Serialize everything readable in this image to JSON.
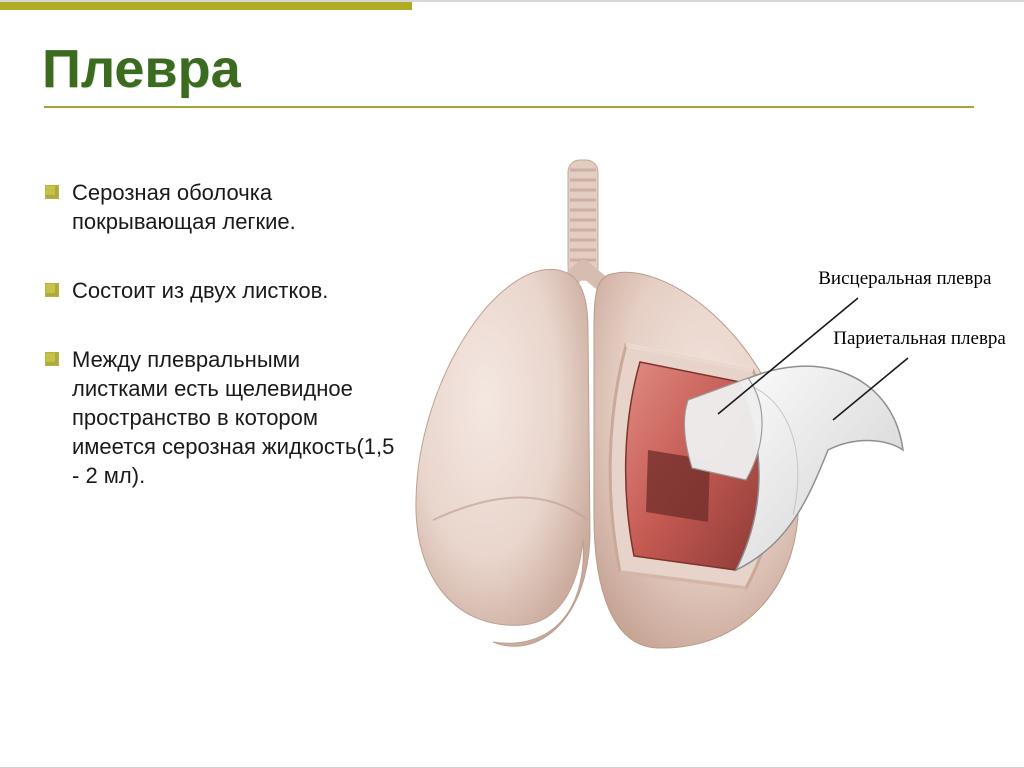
{
  "title": "Плевра",
  "title_color": "#3a6b1f",
  "title_fontsize": 54,
  "accent_color": "#b0ac26",
  "accent_bar_width": 412,
  "underline_width": 930,
  "bullet_color": "#c5c247",
  "bullets": {
    "fontsize": 22,
    "items": [
      "Серозная оболочка покрывающая легкие.",
      "Состоит из двух листков.",
      "Между плевральными листками есть щелевидное пространство в котором имеется серозная жидкость(1,5 - 2 мл)."
    ]
  },
  "figure": {
    "label_visceral": "Висцеральная плевра",
    "label_parietal": "Париетальная плевра",
    "label_fontsize": 19,
    "lung_surface": "#e9d5cc",
    "lung_shadow": "#c9a99a",
    "lung_highlight": "#f4e8e2",
    "inner_wall": "#d06a60",
    "inner_wall_dark": "#9b3e3a",
    "trachea": "#e3ccc2",
    "trachea_ring": "#c7a899",
    "flap_fill": "#e6e6e6",
    "flap_stroke": "#8f8f8f",
    "leader_stroke": "#1a1a1a"
  }
}
